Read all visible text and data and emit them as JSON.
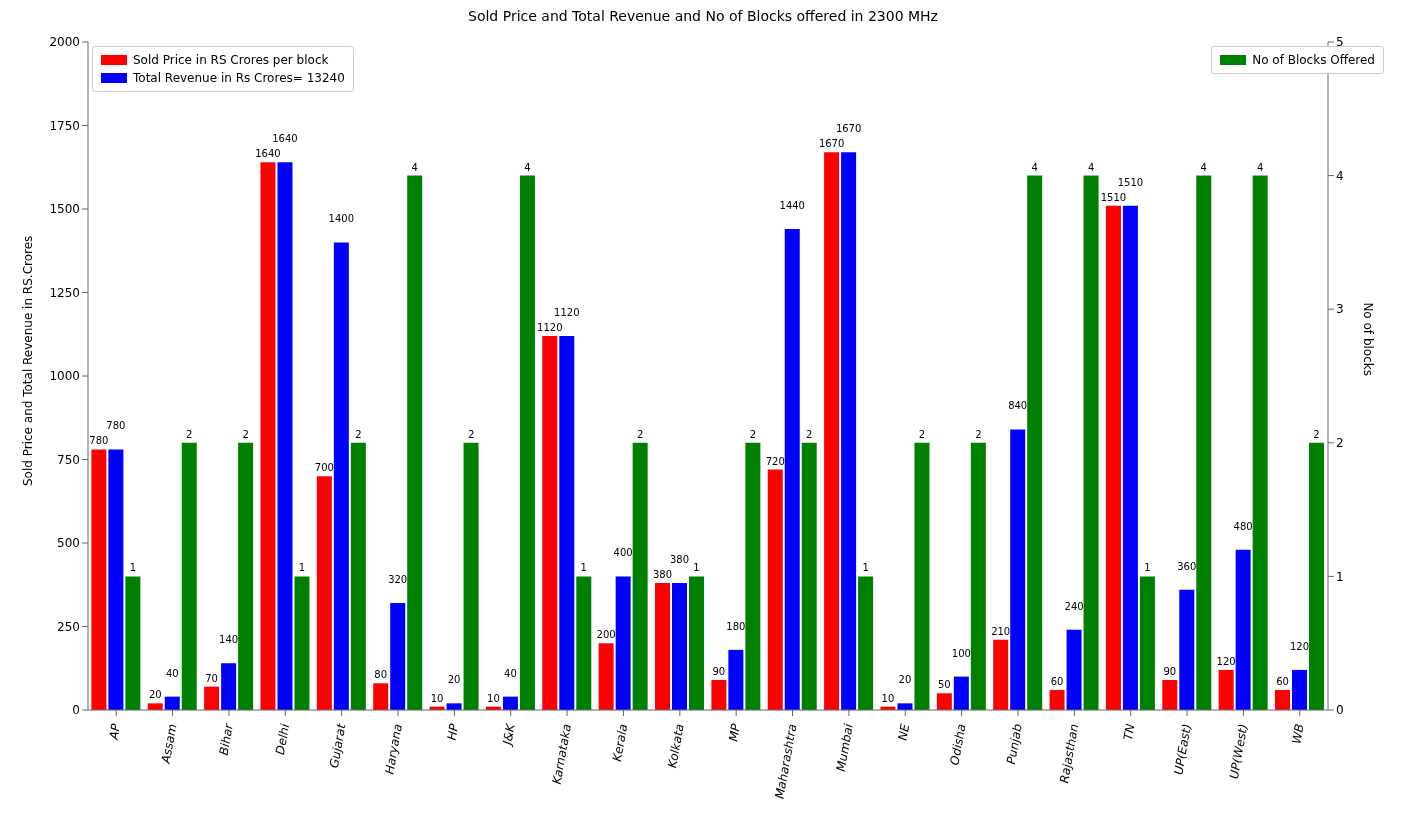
{
  "chart_data": {
    "type": "bar",
    "title": "Sold Price and Total Revenue and No of Blocks offered in 2300 MHz",
    "ylabel": "Sold Price and Total Revenue in RS.Crores",
    "y2label": "No of blocks",
    "categories": [
      "AP",
      "Assam",
      "Bihar",
      "Delhi",
      "Gujarat",
      "Haryana",
      "HP",
      "J&K",
      "Karnataka",
      "Kerala",
      "Kolkata",
      "MP",
      "Maharashtra",
      "Mumbai",
      "NE",
      "Odisha",
      "Punjab",
      "Rajasthan",
      "TN",
      "UP(East)",
      "UP(West)",
      "WB"
    ],
    "series": [
      {
        "name": "Sold Price in RS Crores per block",
        "color": "#ff0000",
        "values": [
          780,
          20,
          70,
          1640,
          700,
          80,
          10,
          10,
          1120,
          200,
          380,
          90,
          720,
          1670,
          10,
          50,
          210,
          60,
          1510,
          90,
          120,
          60
        ]
      },
      {
        "name": "Total Revenue in Rs Crores= 13240",
        "color": "#0000ff",
        "values": [
          780,
          40,
          140,
          1640,
          1400,
          320,
          20,
          40,
          1120,
          400,
          380,
          180,
          1440,
          1670,
          20,
          100,
          840,
          240,
          1510,
          360,
          480,
          120
        ]
      },
      {
        "name": "No of Blocks Offered",
        "color": "#008000",
        "axis": "y2",
        "values": [
          1,
          2,
          2,
          1,
          2,
          4,
          2,
          4,
          1,
          2,
          1,
          2,
          2,
          1,
          2,
          2,
          4,
          4,
          1,
          4,
          4,
          2
        ]
      }
    ],
    "ylim": [
      0,
      2000
    ],
    "yticks": [
      0,
      250,
      500,
      750,
      1000,
      1250,
      1500,
      1750,
      2000
    ],
    "y2lim": [
      0,
      5
    ],
    "y2ticks": [
      0,
      1,
      2,
      3,
      4,
      5
    ],
    "data_labels": true,
    "legend": "top"
  }
}
